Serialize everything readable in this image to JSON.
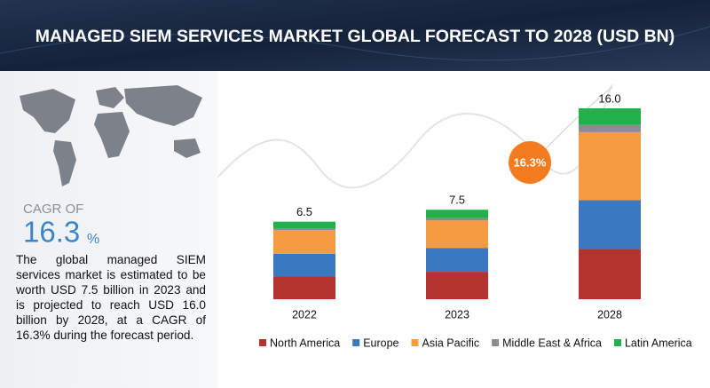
{
  "chart_data": {
    "type": "stacked-bar",
    "title": "MANAGED SIEM SERVICES MARKET GLOBAL FORECAST TO 2028 (USD BN)",
    "categories": [
      "2022",
      "2023",
      "2028"
    ],
    "series": [
      {
        "name": "North America",
        "color": "#b5332e",
        "values": [
          1.9,
          2.3,
          4.2
        ]
      },
      {
        "name": "Europe",
        "color": "#3a78c2",
        "values": [
          1.9,
          2.0,
          4.1
        ]
      },
      {
        "name": "Asia Pacific",
        "color": "#f59b42",
        "values": [
          2.0,
          2.3,
          5.7
        ]
      },
      {
        "name": "Middle East & Africa",
        "color": "#8c8c8c",
        "values": [
          0.1,
          0.2,
          0.6
        ]
      },
      {
        "name": "Latin America",
        "color": "#22b04b",
        "values": [
          0.6,
          0.7,
          1.4
        ]
      }
    ],
    "totals": [
      6.5,
      7.5,
      16
    ],
    "total_labels": [
      "6.5",
      "7.5",
      "16.0"
    ],
    "cagr_badge": "16.3%",
    "cagr_heading": "CAGR OF",
    "cagr_number": "16.3",
    "cagr_unit": "%",
    "description": "The global managed SIEM services market is estimated to be worth USD 7.5 billion in 2023 and is projected to reach USD 16.0 billion by 2028, at a CAGR of 16.3% during the forecast period."
  }
}
